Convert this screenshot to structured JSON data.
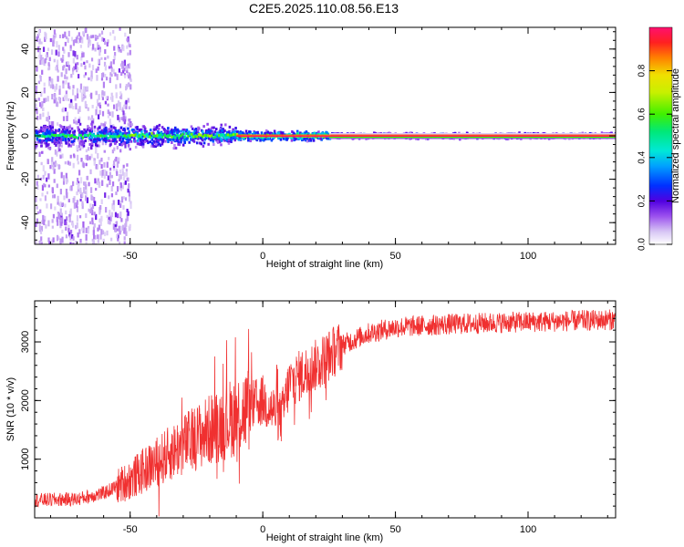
{
  "title": "C2E5.2025.110.08.56.E13",
  "chart_data": [
    {
      "type": "heatmap",
      "xlabel": "Height of straight line (km)",
      "ylabel": "Frequency (Hz)",
      "xlim": [
        -86,
        133
      ],
      "ylim": [
        -50,
        50
      ],
      "xticks": [
        -50,
        0,
        50,
        100
      ],
      "yticks": [
        -40,
        -20,
        0,
        20,
        40
      ],
      "colorbar": {
        "label": "Normalized spectral amplitude",
        "ticks": [
          0.0,
          0.2,
          0.4,
          0.6,
          0.8
        ],
        "range": [
          0,
          1
        ],
        "tick_labels": [
          "0.0",
          "0.2",
          "0.4",
          "0.6",
          "0.8"
        ]
      },
      "tone_frequency_hz": 0,
      "description_regions": [
        {
          "x_range": [
            -86,
            -52
          ],
          "freq_spread_hz": 50,
          "amplitude": 0.15
        },
        {
          "x_range": [
            -52,
            -10
          ],
          "freq_spread_hz": 6,
          "amplitude": 0.35
        },
        {
          "x_range": [
            -10,
            25
          ],
          "freq_spread_hz": 2,
          "amplitude": 0.8
        },
        {
          "x_range": [
            25,
            133
          ],
          "freq_spread_hz": 1,
          "amplitude": 0.95
        }
      ]
    },
    {
      "type": "line",
      "xlabel": "Height of straight line (km)",
      "ylabel": "SNR (10 * v/v)",
      "xlim": [
        -86,
        133
      ],
      "ylim": [
        0,
        3700
      ],
      "xticks": [
        -50,
        0,
        50,
        100
      ],
      "yticks": [
        1000,
        2000,
        3000
      ],
      "series": [
        {
          "color": "#f03030",
          "trend": [
            {
              "x": -86,
              "y": 300
            },
            {
              "x": -70,
              "y": 320
            },
            {
              "x": -60,
              "y": 420
            },
            {
              "x": -50,
              "y": 650
            },
            {
              "x": -40,
              "y": 950
            },
            {
              "x": -30,
              "y": 1250
            },
            {
              "x": -20,
              "y": 1500
            },
            {
              "x": -10,
              "y": 1750
            },
            {
              "x": 0,
              "y": 2000
            },
            {
              "x": 7,
              "y": 1700
            },
            {
              "x": 10,
              "y": 2300
            },
            {
              "x": 20,
              "y": 2600
            },
            {
              "x": 30,
              "y": 2950
            },
            {
              "x": 40,
              "y": 3150
            },
            {
              "x": 50,
              "y": 3250
            },
            {
              "x": 70,
              "y": 3300
            },
            {
              "x": 90,
              "y": 3330
            },
            {
              "x": 110,
              "y": 3350
            },
            {
              "x": 133,
              "y": 3380
            }
          ]
        }
      ]
    }
  ]
}
